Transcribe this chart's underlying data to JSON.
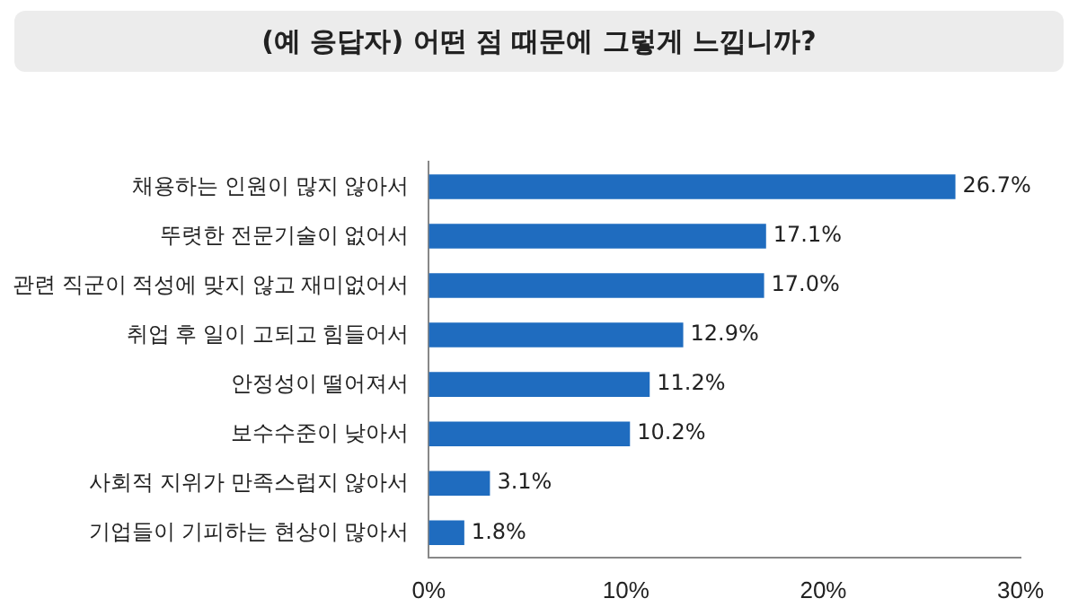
{
  "chart_data": {
    "type": "bar",
    "orientation": "horizontal",
    "title": "(예 응답자) 어떤 점 때문에 그렇게 느낍니까?",
    "categories": [
      "채용하는 인원이 많지 않아서",
      "뚜렷한 전문기술이 없어서",
      "관련 직군이 적성에 맞지 않고 재미없어서",
      "취업 후 일이 고되고 힘들어서",
      "안정성이 떨어져서",
      "보수수준이 낮아서",
      "사회적 지위가 만족스럽지 않아서",
      "기업들이 기피하는 현상이 많아서"
    ],
    "values": [
      26.7,
      17.1,
      17.0,
      12.9,
      11.2,
      10.2,
      3.1,
      1.8
    ],
    "value_labels": [
      "26.7%",
      "17.1%",
      "17.0%",
      "12.9%",
      "11.2%",
      "10.2%",
      "3.1%",
      "1.8%"
    ],
    "color": "#1f6cbf",
    "xlim": [
      0,
      30
    ],
    "xticks": [
      {
        "value": 0,
        "label": "0%"
      },
      {
        "value": 10,
        "label": "10%"
      },
      {
        "value": 20,
        "label": "20%"
      },
      {
        "value": 30,
        "label": "30%"
      }
    ],
    "grid": false,
    "legend": false
  }
}
